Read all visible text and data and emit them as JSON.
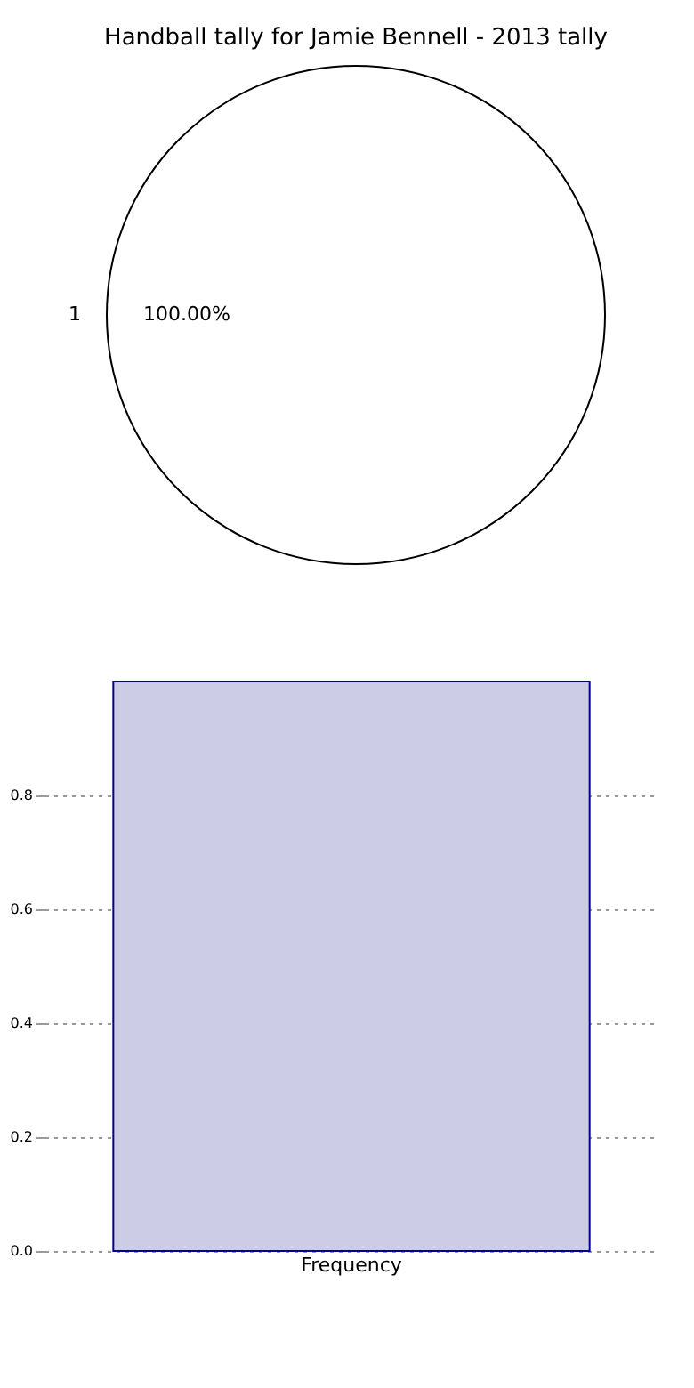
{
  "chart_data": [
    {
      "type": "pie",
      "title": "Handball tally for Jamie Bennell - 2013 tally",
      "categories": [
        "1"
      ],
      "values": [
        100
      ],
      "colors": [
        "#ffffff"
      ],
      "value_labels": [
        "100.00%"
      ]
    },
    {
      "type": "bar",
      "categories": [
        "Frequency"
      ],
      "values": [
        1.0
      ],
      "color": "#cccce6",
      "ylim": [
        0,
        1.0
      ],
      "yticks": [
        {
          "value": 0,
          "label": "0.0"
        },
        {
          "value": 0.2,
          "label": "0.2"
        },
        {
          "value": 0.4,
          "label": "0.4"
        },
        {
          "value": 0.6,
          "label": "0.6"
        },
        {
          "value": 0.8,
          "label": "0.8"
        }
      ],
      "grid": "y"
    }
  ]
}
